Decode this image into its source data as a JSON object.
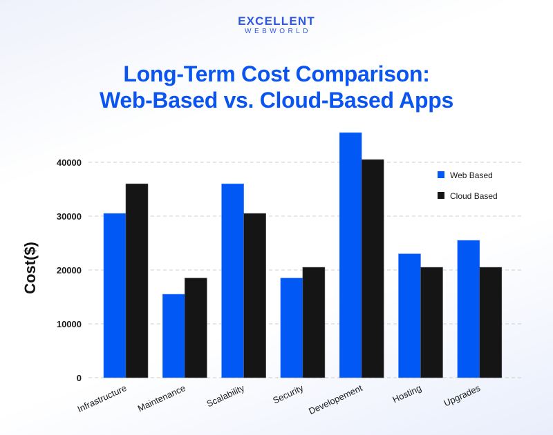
{
  "logo": {
    "line1": "EXCELLENT",
    "line2": "WEBWORLD"
  },
  "title_line1": "Long-Term Cost Comparison:",
  "title_line2": "Web-Based vs. Cloud-Based Apps",
  "colors": {
    "web": "#0258f5",
    "cloud": "#151515",
    "title": "#0a54f0",
    "grid": "#cccccc"
  },
  "chart_data": {
    "type": "bar",
    "title": "Long-Term Cost Comparison: Web-Based vs. Cloud-Based Apps",
    "xlabel": "",
    "ylabel": "Cost($)",
    "ylim": [
      0,
      46000
    ],
    "yticks": [
      0,
      10000,
      20000,
      30000,
      40000
    ],
    "grid": true,
    "legend_position": "upper right",
    "categories": [
      "Infrastructure",
      "Maintenance",
      "Scalability",
      "Security",
      "Developement",
      "Hosting",
      "Upgrades"
    ],
    "series": [
      {
        "name": "Web Based",
        "color": "#0258f5",
        "values": [
          30500,
          15500,
          36000,
          18500,
          45500,
          23000,
          25500
        ]
      },
      {
        "name": "Cloud Based",
        "color": "#151515",
        "values": [
          36000,
          18500,
          30500,
          20500,
          40500,
          20500,
          20500
        ]
      }
    ]
  }
}
